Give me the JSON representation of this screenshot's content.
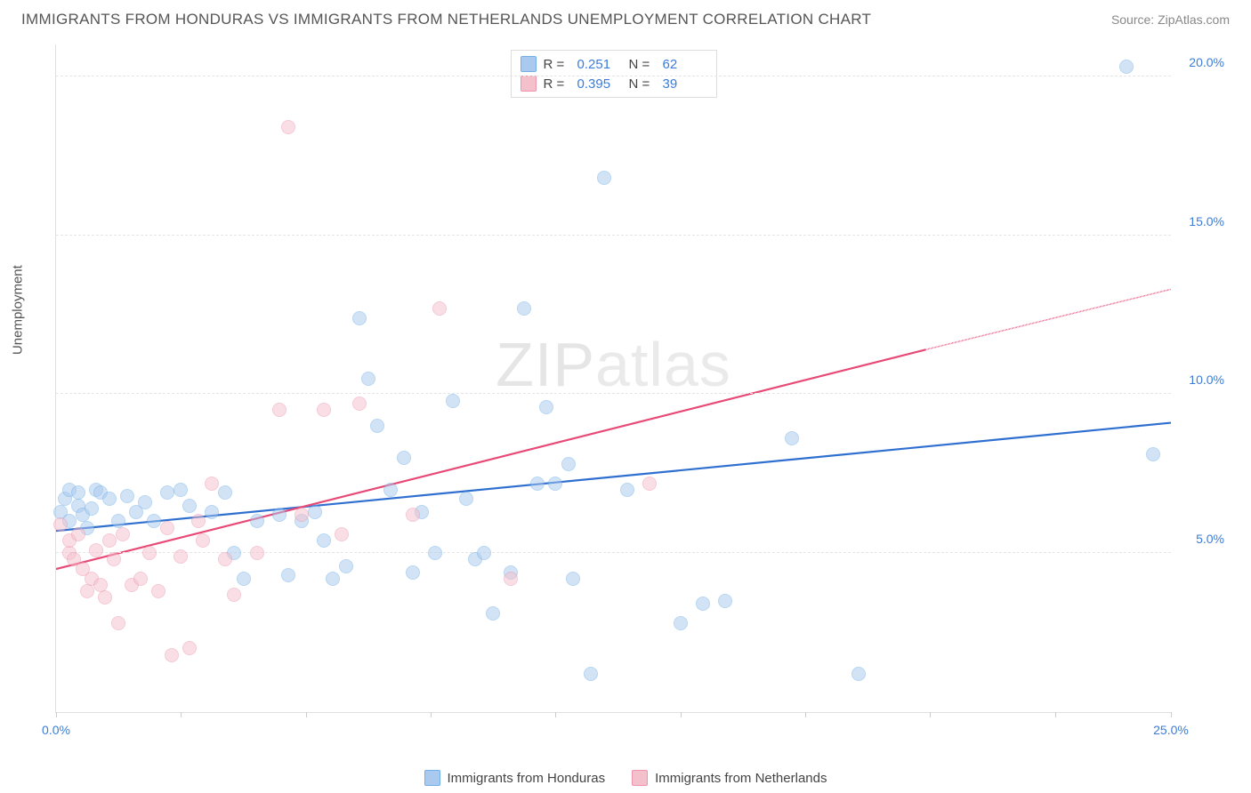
{
  "header": {
    "title": "IMMIGRANTS FROM HONDURAS VS IMMIGRANTS FROM NETHERLANDS UNEMPLOYMENT CORRELATION CHART",
    "source": "Source: ZipAtlas.com"
  },
  "watermark": {
    "bold": "ZIP",
    "light": "atlas"
  },
  "chart": {
    "type": "scatter",
    "ylabel": "Unemployment",
    "xlim": [
      0,
      25
    ],
    "ylim": [
      0,
      21
    ],
    "xtick_positions": [
      0,
      2.8,
      5.6,
      8.4,
      11.2,
      14.0,
      16.8,
      19.6,
      22.4,
      25.0
    ],
    "xtick_labels": {
      "0": "0.0%",
      "25": "25.0%"
    },
    "ytick_positions": [
      5,
      10,
      15,
      20
    ],
    "ytick_labels": [
      "5.0%",
      "10.0%",
      "15.0%",
      "20.0%"
    ],
    "grid_color": "#e5e5e5",
    "background_color": "#ffffff",
    "marker_radius": 8,
    "marker_opacity": 0.5,
    "series": [
      {
        "name": "Immigrants from Honduras",
        "color_fill": "#a9c9ef",
        "color_stroke": "#6faee7",
        "trend_color": "#2f6fd0",
        "trend": {
          "x1": 0,
          "y1": 5.7,
          "x2": 25,
          "y2": 9.1,
          "dash_after_x": 25
        },
        "R": "0.251",
        "N": "62",
        "points": [
          [
            0.1,
            6.3
          ],
          [
            0.2,
            6.7
          ],
          [
            0.3,
            6.0
          ],
          [
            0.3,
            7.0
          ],
          [
            0.5,
            6.5
          ],
          [
            0.5,
            6.9
          ],
          [
            0.6,
            6.2
          ],
          [
            0.7,
            5.8
          ],
          [
            0.8,
            6.4
          ],
          [
            0.9,
            7.0
          ],
          [
            1.0,
            6.9
          ],
          [
            1.2,
            6.7
          ],
          [
            1.4,
            6.0
          ],
          [
            1.6,
            6.8
          ],
          [
            1.8,
            6.3
          ],
          [
            2.0,
            6.6
          ],
          [
            2.2,
            6.0
          ],
          [
            2.5,
            6.9
          ],
          [
            2.8,
            7.0
          ],
          [
            3.0,
            6.5
          ],
          [
            3.5,
            6.3
          ],
          [
            3.8,
            6.9
          ],
          [
            4.0,
            5.0
          ],
          [
            4.2,
            4.2
          ],
          [
            4.5,
            6.0
          ],
          [
            5.0,
            6.2
          ],
          [
            5.2,
            4.3
          ],
          [
            5.5,
            6.0
          ],
          [
            5.8,
            6.3
          ],
          [
            6.0,
            5.4
          ],
          [
            6.2,
            4.2
          ],
          [
            6.5,
            4.6
          ],
          [
            6.8,
            12.4
          ],
          [
            7.0,
            10.5
          ],
          [
            7.2,
            9.0
          ],
          [
            7.5,
            7.0
          ],
          [
            7.8,
            8.0
          ],
          [
            8.0,
            4.4
          ],
          [
            8.2,
            6.3
          ],
          [
            8.5,
            5.0
          ],
          [
            8.9,
            9.8
          ],
          [
            9.2,
            6.7
          ],
          [
            9.4,
            4.8
          ],
          [
            9.6,
            5.0
          ],
          [
            9.8,
            3.1
          ],
          [
            10.2,
            4.4
          ],
          [
            10.5,
            12.7
          ],
          [
            10.8,
            7.2
          ],
          [
            11.0,
            9.6
          ],
          [
            11.2,
            7.2
          ],
          [
            11.5,
            7.8
          ],
          [
            11.6,
            4.2
          ],
          [
            12.0,
            1.2
          ],
          [
            12.3,
            16.8
          ],
          [
            12.8,
            7.0
          ],
          [
            14.0,
            2.8
          ],
          [
            14.5,
            3.4
          ],
          [
            15.0,
            3.5
          ],
          [
            16.5,
            8.6
          ],
          [
            18.0,
            1.2
          ],
          [
            24.0,
            20.3
          ],
          [
            24.6,
            8.1
          ]
        ]
      },
      {
        "name": "Immigrants from Netherlands",
        "color_fill": "#f4c0cc",
        "color_stroke": "#ec95ac",
        "trend_color": "#e84a77",
        "trend": {
          "x1": 0,
          "y1": 4.5,
          "x2": 19.5,
          "y2": 11.4,
          "dash_after_x": 19.5,
          "x3": 25,
          "y3": 13.3
        },
        "R": "0.395",
        "N": "39",
        "points": [
          [
            0.1,
            5.9
          ],
          [
            0.3,
            5.0
          ],
          [
            0.3,
            5.4
          ],
          [
            0.4,
            4.8
          ],
          [
            0.5,
            5.6
          ],
          [
            0.6,
            4.5
          ],
          [
            0.7,
            3.8
          ],
          [
            0.8,
            4.2
          ],
          [
            0.9,
            5.1
          ],
          [
            1.0,
            4.0
          ],
          [
            1.1,
            3.6
          ],
          [
            1.2,
            5.4
          ],
          [
            1.3,
            4.8
          ],
          [
            1.4,
            2.8
          ],
          [
            1.5,
            5.6
          ],
          [
            1.7,
            4.0
          ],
          [
            1.9,
            4.2
          ],
          [
            2.1,
            5.0
          ],
          [
            2.3,
            3.8
          ],
          [
            2.5,
            5.8
          ],
          [
            2.6,
            1.8
          ],
          [
            2.8,
            4.9
          ],
          [
            3.0,
            2.0
          ],
          [
            3.2,
            6.0
          ],
          [
            3.3,
            5.4
          ],
          [
            3.5,
            7.2
          ],
          [
            3.8,
            4.8
          ],
          [
            4.0,
            3.7
          ],
          [
            4.5,
            5.0
          ],
          [
            5.0,
            9.5
          ],
          [
            5.2,
            18.4
          ],
          [
            5.5,
            6.2
          ],
          [
            6.0,
            9.5
          ],
          [
            6.4,
            5.6
          ],
          [
            6.8,
            9.7
          ],
          [
            8.0,
            6.2
          ],
          [
            8.6,
            12.7
          ],
          [
            10.2,
            4.2
          ],
          [
            13.3,
            7.2
          ]
        ]
      }
    ]
  },
  "legend_top": {
    "rows": [
      {
        "swatch_fill": "#a9c9ef",
        "swatch_stroke": "#6faee7",
        "r_label": "R = ",
        "r_val": "0.251",
        "n_label": "N = ",
        "n_val": "62"
      },
      {
        "swatch_fill": "#f4c0cc",
        "swatch_stroke": "#ec95ac",
        "r_label": "R = ",
        "r_val": "0.395",
        "n_label": "N = ",
        "n_val": "39"
      }
    ]
  },
  "legend_bottom": {
    "items": [
      {
        "swatch_fill": "#a9c9ef",
        "swatch_stroke": "#6faee7",
        "label": "Immigrants from Honduras"
      },
      {
        "swatch_fill": "#f4c0cc",
        "swatch_stroke": "#ec95ac",
        "label": "Immigrants from Netherlands"
      }
    ]
  }
}
